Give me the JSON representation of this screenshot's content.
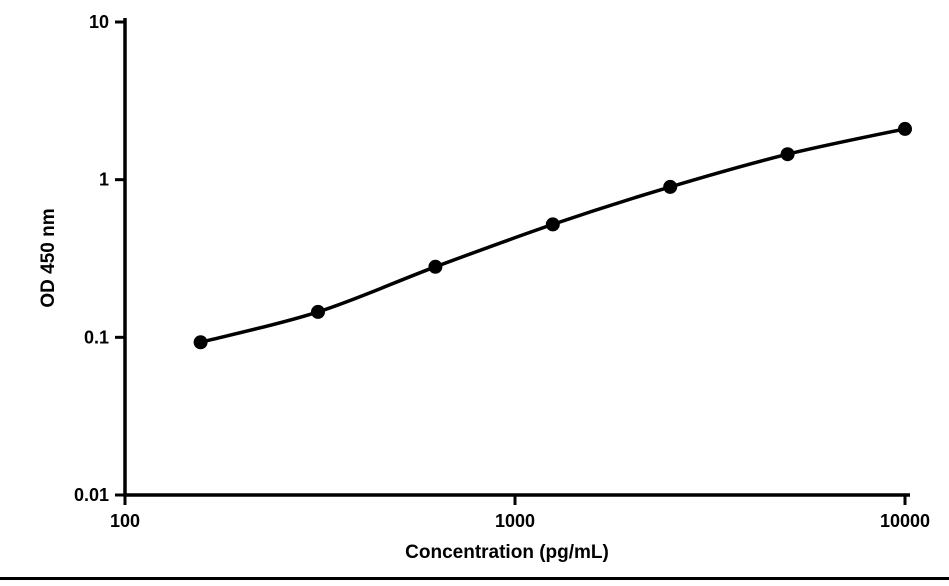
{
  "chart_data": {
    "type": "line",
    "title": "",
    "xlabel": "Concentration (pg/mL)",
    "ylabel": "OD 450 nm",
    "x_scale": "log",
    "y_scale": "log",
    "x": [
      156.25,
      312.5,
      625,
      1250,
      2500,
      5000,
      10000
    ],
    "y": [
      0.093,
      0.145,
      0.28,
      0.52,
      0.9,
      1.45,
      2.1
    ],
    "xlim": [
      100,
      10000
    ],
    "ylim": [
      0.01,
      10
    ],
    "x_ticks": [
      100,
      1000,
      10000
    ],
    "x_tick_labels": [
      "100",
      "1000",
      "10000"
    ],
    "y_ticks": [
      0.01,
      0.1,
      1,
      10
    ],
    "y_tick_labels": [
      "0.01",
      "0.1",
      "1",
      "10"
    ],
    "grid": false,
    "legend": null,
    "line_color": "#000000",
    "marker_color": "#000000",
    "marker": "circle"
  },
  "page": {
    "background_color": "#ffffff",
    "bottom_rule_color": "#000000"
  }
}
